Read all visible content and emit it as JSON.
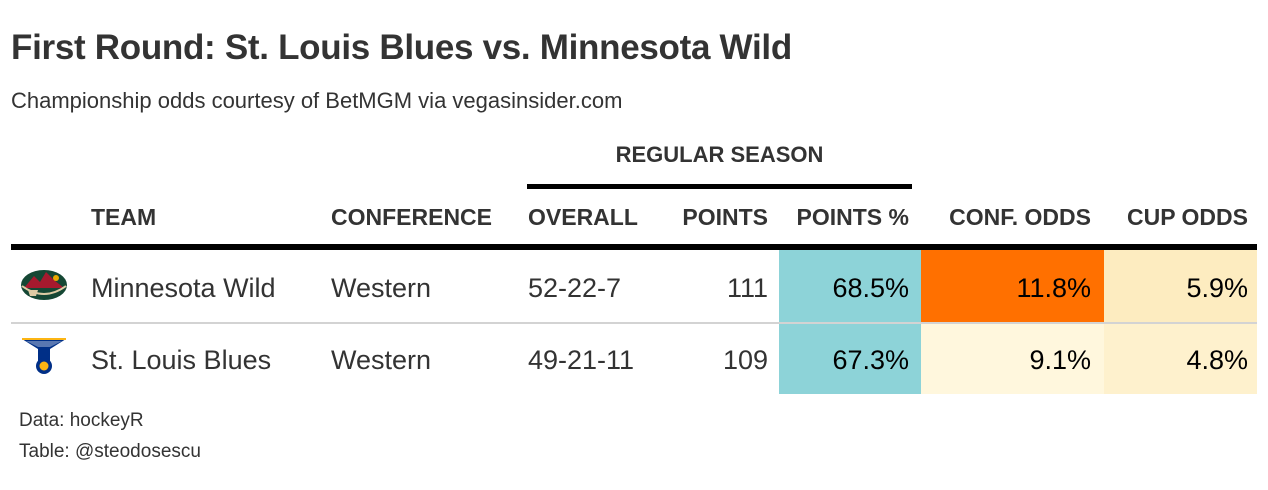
{
  "chart_data": {
    "type": "table",
    "title": "First Round: St. Louis Blues vs. Minnesota Wild",
    "subtitle": "Championship odds courtesy of BetMGM via vegasinsider.com",
    "spanner": "REGULAR SEASON",
    "columns": {
      "team": "TEAM",
      "conference": "CONFERENCE",
      "overall": "OVERALL",
      "points": "POINTS",
      "points_pct": "POINTS %",
      "conf_odds": "CONF. ODDS",
      "cup_odds": "CUP ODDS"
    },
    "rows": [
      {
        "team": "Minnesota Wild",
        "logo_icon": "minnesota-wild-logo-icon",
        "conference": "Western",
        "overall": "52-22-7",
        "points": "111",
        "points_pct": "68.5%",
        "conf_odds": "11.8%",
        "cup_odds": "5.9%",
        "points_pct_color": "#8dd3d8",
        "conf_odds_color": "#ff7000",
        "cup_odds_color": "#fdecc0"
      },
      {
        "team": "St. Louis Blues",
        "logo_icon": "st-louis-blues-logo-icon",
        "conference": "Western",
        "overall": "49-21-11",
        "points": "109",
        "points_pct": "67.3%",
        "conf_odds": "9.1%",
        "cup_odds": "4.8%",
        "points_pct_color": "#8dd3d8",
        "conf_odds_color": "#fff7dd",
        "cup_odds_color": "#fef1cd"
      }
    ]
  },
  "source": {
    "data": "Data: hockeyR",
    "table": "Table: @steodosescu"
  }
}
